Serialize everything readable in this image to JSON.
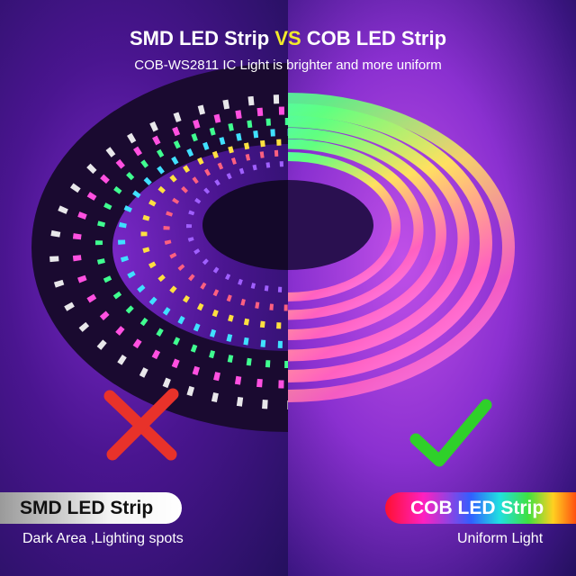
{
  "header": {
    "title_left": "SMD LED Strip ",
    "title_vs": "VS",
    "title_right": " COB LED Strip",
    "subtitle": "COB-WS2811 IC Light is brighter and more uniform"
  },
  "left": {
    "label": "SMD LED Strip",
    "description": "Dark Area ,Lighting spots",
    "mark_icon": "red-x-icon",
    "mark_color": "#e8322a"
  },
  "right": {
    "label": "COB LED Strip",
    "description": "Uniform Light",
    "mark_icon": "green-check-icon",
    "mark_color": "#2fd02a"
  }
}
